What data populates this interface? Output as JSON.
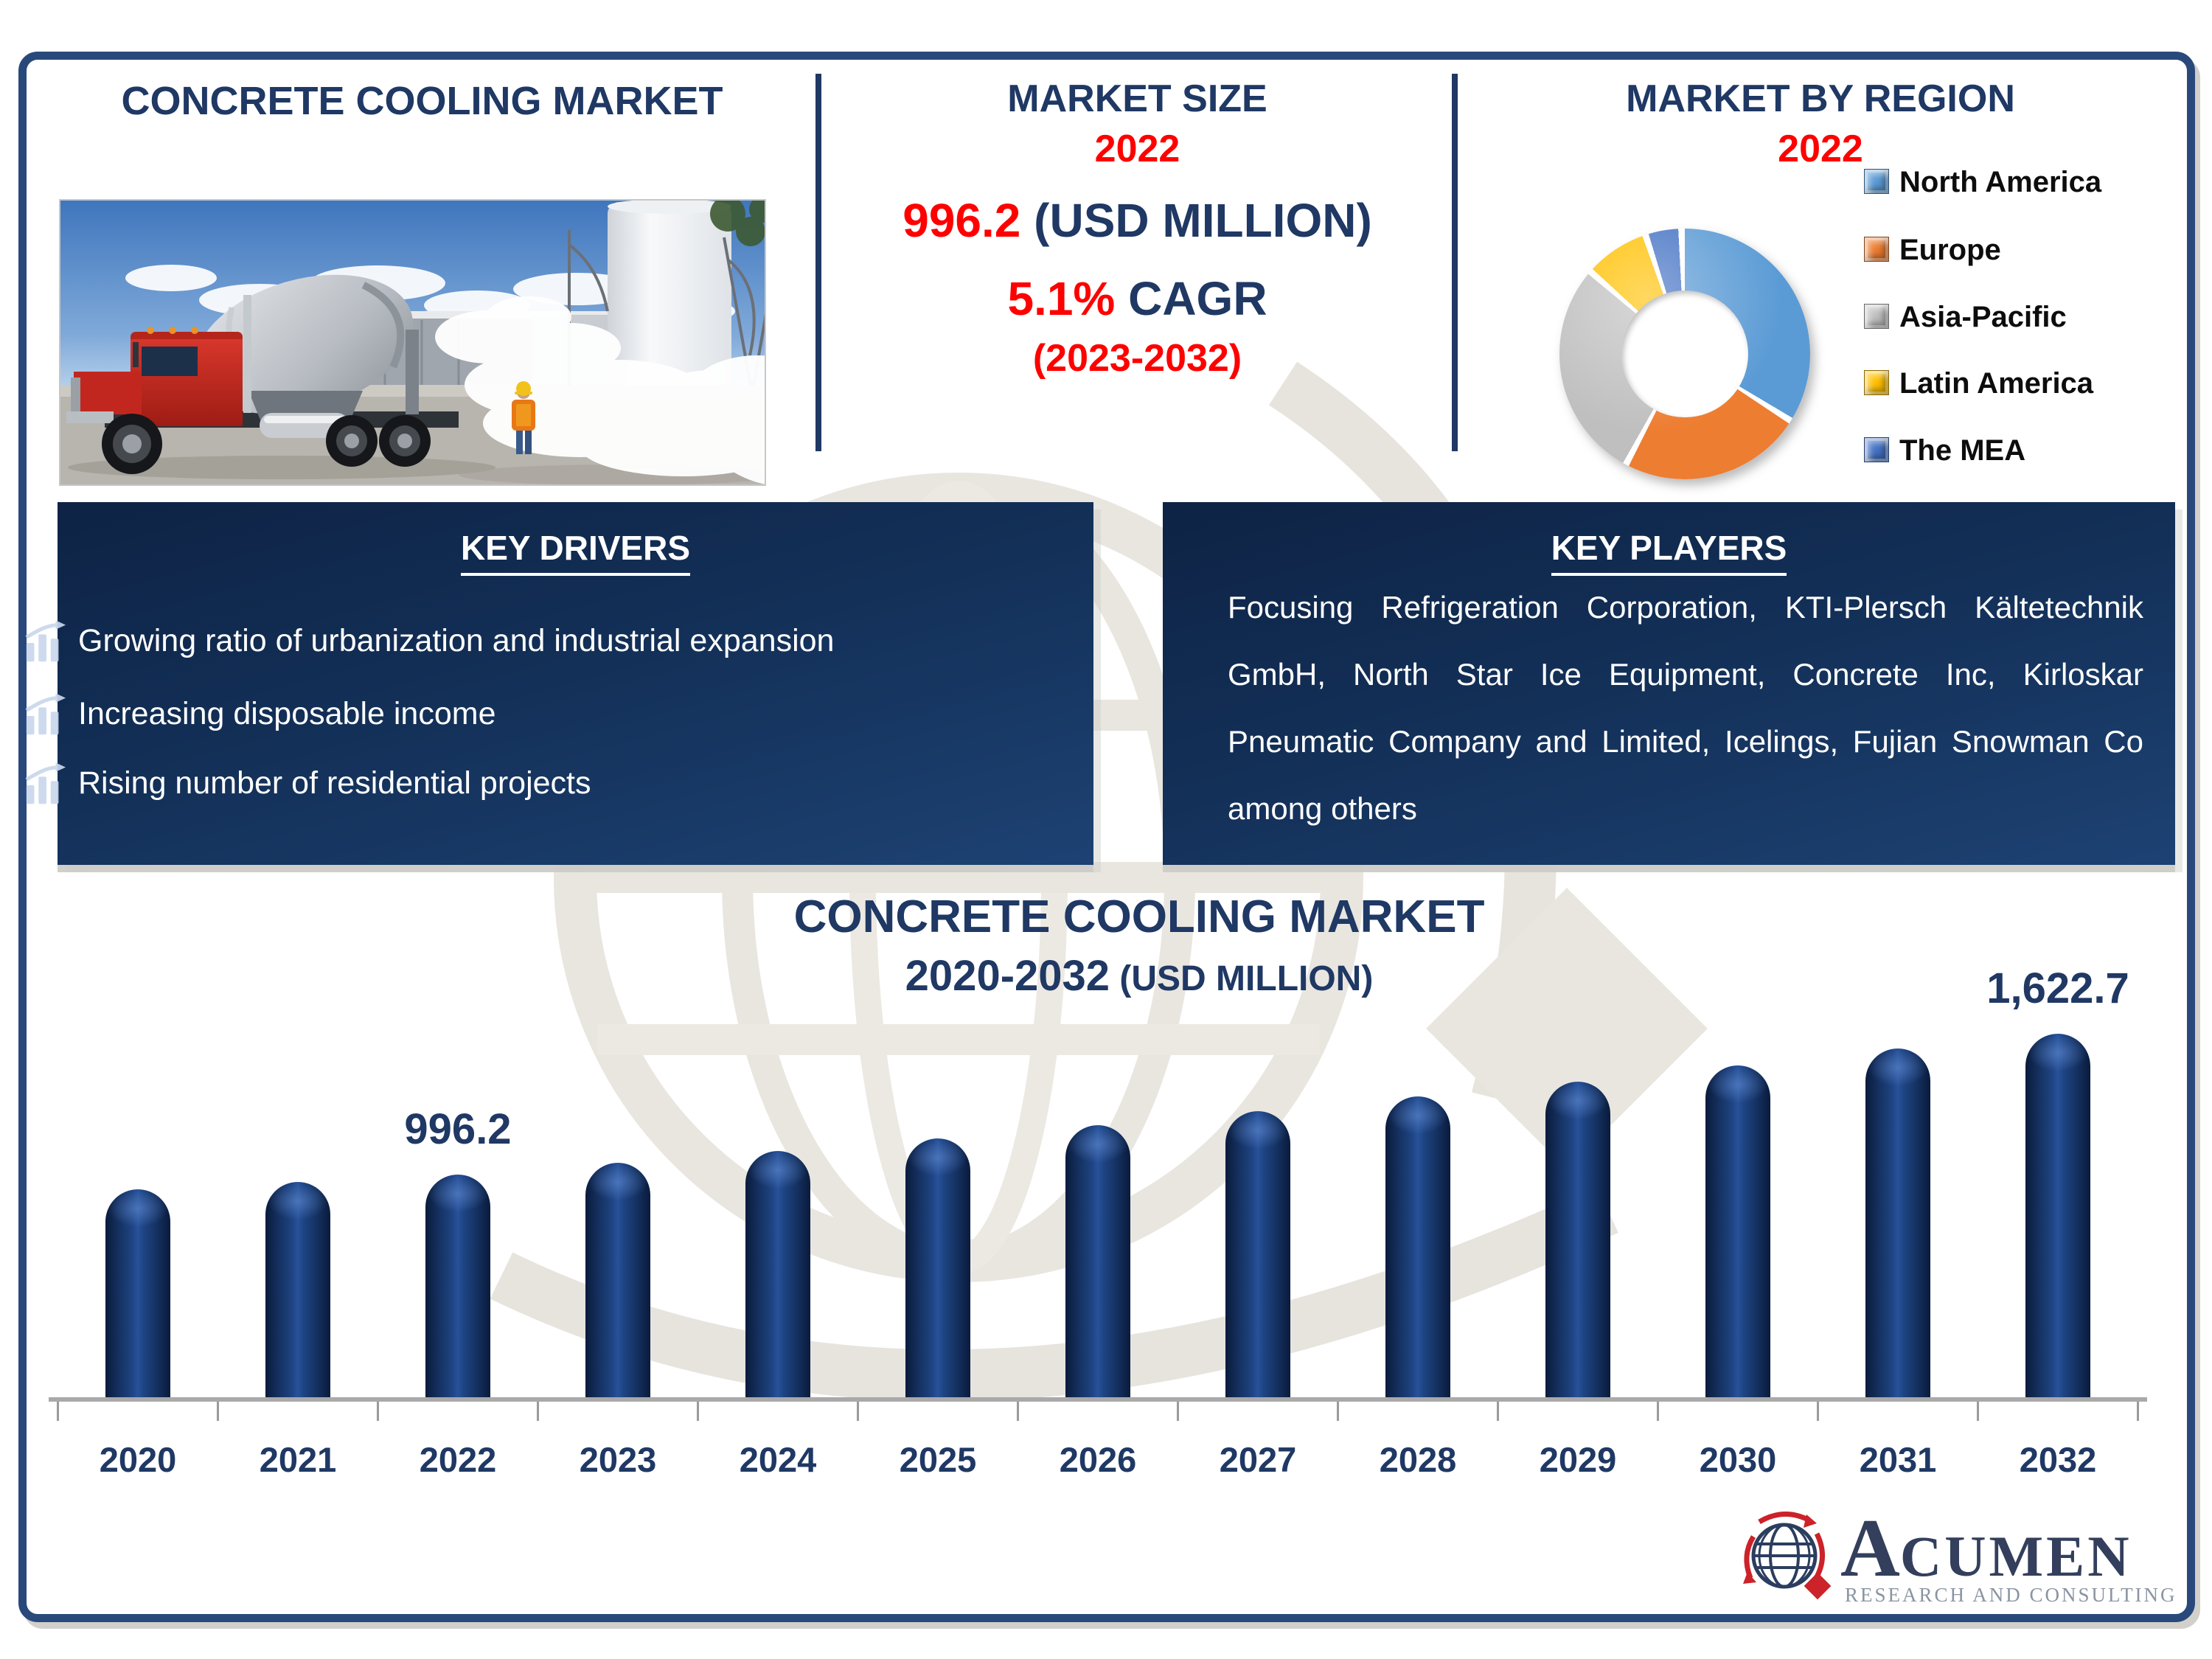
{
  "header": {
    "left_title": "CONCRETE COOLING MARKET",
    "market_size": {
      "title": "MARKET SIZE",
      "year": "2022",
      "value": "996.2",
      "unit": " (USD MILLION)",
      "cagr_value": "5.1%",
      "cagr_label": " CAGR",
      "period": "(2023-2032)"
    },
    "region": {
      "title": "MARKET BY REGION",
      "year": "2022"
    }
  },
  "key_drivers": {
    "title": "KEY DRIVERS",
    "items": [
      "Growing ratio of urbanization and industrial expansion",
      "Increasing disposable income",
      "Rising number of residential projects"
    ]
  },
  "key_players": {
    "title": "KEY PLAYERS",
    "text": "Focusing Refrigeration Corporation, KTI-Plersch Kältetechnik GmbH, North Star Ice Equipment, Concrete Inc, Kirloskar Pneumatic Company and Limited, Icelings, Fujian Snowman Co among others"
  },
  "bar_section_title": {
    "line1": "CONCRETE COOLING MARKET",
    "range": "2020-2032",
    "unit": " (USD MILLION)"
  },
  "colors": {
    "navy_text": "#1F3864",
    "red_text": "#FF0000",
    "bar_navy": "#14295B",
    "frame_blue": "#29497B",
    "box_navy_top": "#0E2345",
    "box_navy_bottom": "#1D4273"
  },
  "chart_data": [
    {
      "type": "bar",
      "title": "CONCRETE COOLING MARKET 2020-2032 (USD MILLION)",
      "categories": [
        "2020",
        "2021",
        "2022",
        "2023",
        "2024",
        "2025",
        "2026",
        "2027",
        "2028",
        "2029",
        "2030",
        "2031",
        "2032"
      ],
      "values": [
        928,
        961,
        996.2,
        1047,
        1100.4,
        1156.5,
        1215.5,
        1277.5,
        1342.7,
        1411.1,
        1483.1,
        1558.8,
        1622.7
      ],
      "values_note": "only 2022 and 2032 are labeled in the figure; other values estimated from bar heights / 5.1% CAGR",
      "data_labels": {
        "2022": "996.2",
        "2032": "1,622.7"
      },
      "xlabel": "",
      "ylabel": "",
      "ylim": [
        0,
        1750
      ],
      "grid": false,
      "legend_position": "none",
      "bar_color": "#14295B"
    },
    {
      "type": "pie",
      "donut": true,
      "title": "MARKET BY REGION 2022",
      "labels": [
        "North America",
        "Europe",
        "Asia-Pacific",
        "Latin America",
        "The MEA"
      ],
      "values": [
        35,
        24,
        29,
        8,
        4
      ],
      "values_note": "shares estimated from donut segment angles",
      "colors": [
        "#5B9BD5",
        "#ED7D31",
        "#BFBFBF",
        "#FFC000",
        "#4472C4"
      ],
      "legend_position": "right"
    }
  ],
  "logo": {
    "brand_initial": "A",
    "brand_rest": "CUMEN",
    "subtitle": "RESEARCH AND CONSULTING"
  }
}
